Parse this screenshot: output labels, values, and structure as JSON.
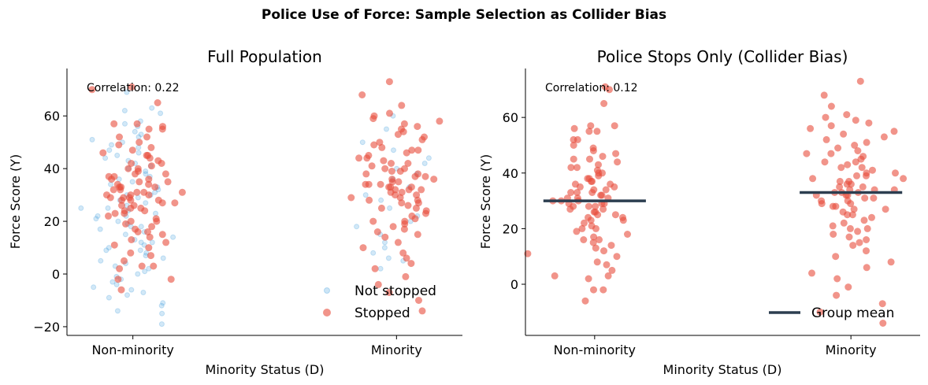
{
  "title": "Police Use of Force: Sample Selection as Collider Bias",
  "colors": {
    "not_stopped": "#3498db",
    "stopped": "#e74c3c",
    "group_mean": "#2c3e50"
  },
  "chart_data": [
    {
      "type": "scatter",
      "title": "Full Population",
      "xlabel": "Minority Status (D)",
      "ylabel": "Force Score (Y)",
      "categories": [
        "Non-minority",
        "Minority"
      ],
      "xlim": [
        -0.25,
        1.25
      ],
      "ylim": [
        -23.3,
        78
      ],
      "yticks": [
        -20,
        0,
        20,
        40,
        60
      ],
      "annotation": "Correlation: 0.22",
      "legend": {
        "placement": "lower-right",
        "entries": [
          "Not stopped",
          "Stopped"
        ]
      },
      "grid": false,
      "series": [
        {
          "name": "Not stopped",
          "color": "#3498db",
          "groups": [
            [
              69,
              63,
              62,
              61,
              58,
              57,
              56,
              54,
              53,
              52,
              51,
              50,
              49,
              48,
              47,
              46,
              45,
              44,
              43,
              42,
              41,
              40,
              39,
              38,
              37,
              36,
              35,
              34,
              33,
              32,
              31,
              30,
              30,
              29,
              28,
              27,
              26,
              25,
              25,
              24,
              23,
              22,
              22,
              21,
              20,
              19,
              18,
              18,
              17,
              16,
              15,
              14,
              13,
              12,
              12,
              11,
              10,
              9,
              9,
              8,
              7,
              6,
              5,
              4,
              3,
              2,
              1,
              0,
              -1,
              -2,
              -3,
              -4,
              -5,
              -6,
              -7,
              -8,
              -9,
              -11,
              -12,
              -14,
              -15,
              -19
            ],
            [
              60,
              55,
              50,
              47,
              44,
              42,
              40,
              38,
              36,
              33,
              30,
              28,
              25,
              22,
              20,
              18,
              15,
              12,
              10,
              8,
              6,
              5,
              2
            ]
          ]
        },
        {
          "name": "Stopped",
          "color": "#e74c3c",
          "groups": [
            [
              71,
              70,
              65,
              57,
              57,
              56,
              55,
              55,
              52,
              52,
              50,
              49,
              48,
              47,
              46,
              45,
              45,
              44,
              43,
              42,
              42,
              41,
              40,
              40,
              39,
              38,
              38,
              37,
              37,
              36,
              36,
              35,
              35,
              34,
              34,
              33,
              33,
              33,
              32,
              32,
              31,
              31,
              31,
              30,
              30,
              30,
              29,
              29,
              29,
              28,
              28,
              28,
              27,
              27,
              26,
              26,
              25,
              25,
              24,
              24,
              23,
              23,
              22,
              21,
              20,
              20,
              19,
              18,
              17,
              16,
              16,
              15,
              14,
              13,
              12,
              11,
              10,
              8,
              7,
              5,
              3,
              3,
              2,
              -2,
              -2,
              -6
            ],
            [
              73,
              68,
              64,
              61,
              60,
              59,
              58,
              57,
              56,
              55,
              54,
              53,
              52,
              51,
              50,
              49,
              48,
              47,
              47,
              46,
              45,
              44,
              44,
              43,
              42,
              42,
              41,
              40,
              40,
              39,
              39,
              38,
              38,
              37,
              37,
              36,
              36,
              35,
              35,
              34,
              34,
              34,
              33,
              33,
              33,
              32,
              32,
              32,
              31,
              31,
              30,
              30,
              29,
              29,
              28,
              28,
              27,
              27,
              26,
              25,
              25,
              24,
              23,
              22,
              21,
              20,
              20,
              19,
              18,
              17,
              16,
              15,
              14,
              12,
              10,
              8,
              6,
              4,
              2,
              -1,
              -4,
              -7,
              -10,
              -14
            ]
          ]
        }
      ]
    },
    {
      "type": "scatter",
      "title": "Police Stops Only (Collider Bias)",
      "xlabel": "Minority Status (D)",
      "ylabel": "Force Score (Y)",
      "categories": [
        "Non-minority",
        "Minority"
      ],
      "xlim": [
        -0.27,
        1.27
      ],
      "ylim": [
        -18.4,
        77.6
      ],
      "yticks": [
        0,
        20,
        40,
        60
      ],
      "annotation": "Correlation: 0.12",
      "legend": {
        "placement": "lower-right",
        "entries": [
          "Group mean"
        ]
      },
      "grid": false,
      "group_means": [
        30,
        33
      ],
      "series_ref": "Stopped"
    }
  ]
}
